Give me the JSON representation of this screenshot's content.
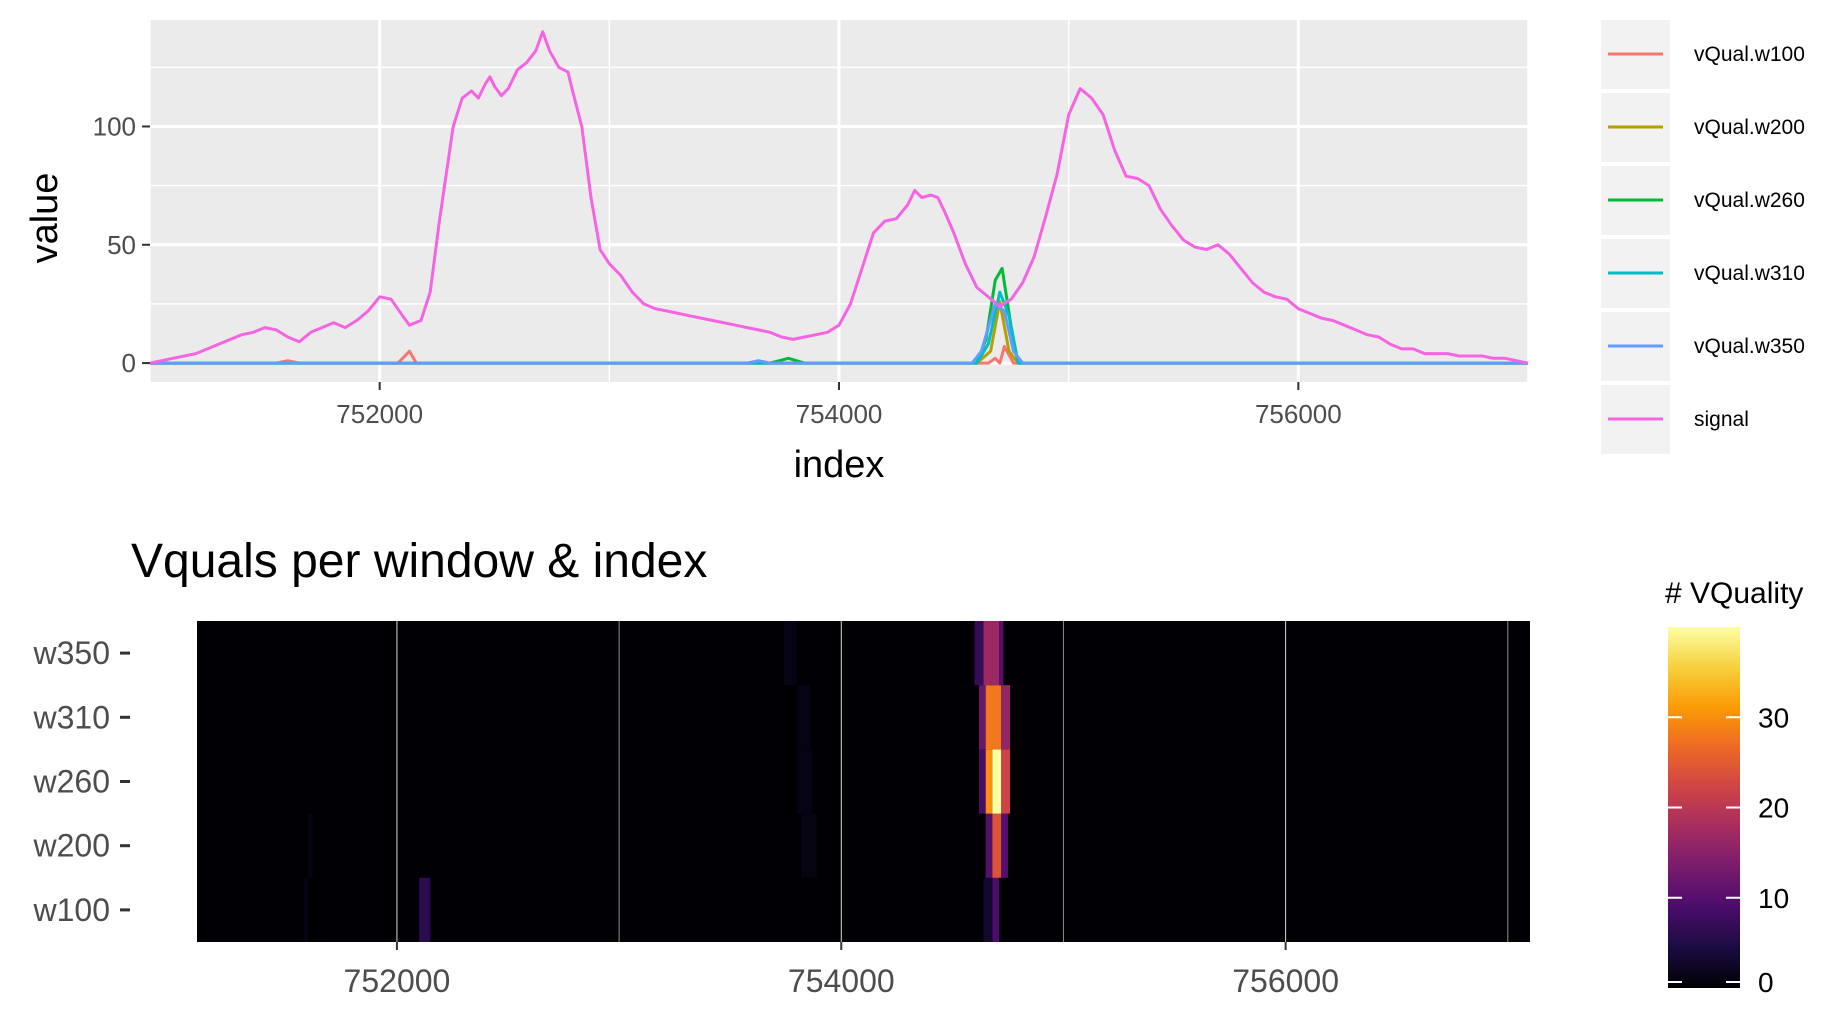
{
  "chart_data": [
    {
      "type": "line",
      "title": "",
      "xlabel": "index",
      "ylabel": "value",
      "xlim": [
        751000,
        757000
      ],
      "ylim": [
        -8,
        145
      ],
      "x_ticks": [
        752000,
        754000,
        756000
      ],
      "x_tick_labels": [
        "752000",
        "754000",
        "756000"
      ],
      "y_ticks": [
        0,
        50,
        100
      ],
      "y_tick_labels": [
        "0",
        "50",
        "100"
      ],
      "grid": true,
      "background": "#ebebeb",
      "legend_position": "right",
      "series": [
        {
          "name": "vQual.w100",
          "color": "#f8766d",
          "points": [
            [
              751000,
              0
            ],
            [
              751550,
              0
            ],
            [
              751600,
              1
            ],
            [
              751650,
              0
            ],
            [
              752080,
              0
            ],
            [
              752130,
              5
            ],
            [
              752160,
              0
            ],
            [
              754650,
              0
            ],
            [
              754680,
              2
            ],
            [
              754700,
              0
            ],
            [
              754720,
              7
            ],
            [
              754760,
              0
            ],
            [
              757000,
              0
            ]
          ]
        },
        {
          "name": "vQual.w200",
          "color": "#b79f00",
          "points": [
            [
              751000,
              0
            ],
            [
              754600,
              0
            ],
            [
              754660,
              5
            ],
            [
              754700,
              26
            ],
            [
              754740,
              5
            ],
            [
              754780,
              0
            ],
            [
              757000,
              0
            ]
          ]
        },
        {
          "name": "vQual.w260",
          "color": "#00ba38",
          "points": [
            [
              751000,
              0
            ],
            [
              753700,
              0
            ],
            [
              753780,
              2
            ],
            [
              753850,
              0
            ],
            [
              754600,
              0
            ],
            [
              754640,
              10
            ],
            [
              754680,
              35
            ],
            [
              754710,
              40
            ],
            [
              754750,
              15
            ],
            [
              754780,
              0
            ],
            [
              757000,
              0
            ]
          ]
        },
        {
          "name": "vQual.w310",
          "color": "#00bfc4",
          "points": [
            [
              751000,
              0
            ],
            [
              754600,
              0
            ],
            [
              754650,
              8
            ],
            [
              754700,
              30
            ],
            [
              754740,
              20
            ],
            [
              754780,
              0
            ],
            [
              757000,
              0
            ]
          ]
        },
        {
          "name": "vQual.w350",
          "color": "#619cff",
          "points": [
            [
              751000,
              0
            ],
            [
              753600,
              0
            ],
            [
              753650,
              1
            ],
            [
              753700,
              0
            ],
            [
              754580,
              0
            ],
            [
              754620,
              5
            ],
            [
              754680,
              25
            ],
            [
              754720,
              22
            ],
            [
              754760,
              5
            ],
            [
              754800,
              0
            ],
            [
              757000,
              0
            ]
          ]
        },
        {
          "name": "signal",
          "color": "#f564e3",
          "points": [
            [
              751000,
              0
            ],
            [
              751100,
              2
            ],
            [
              751200,
              4
            ],
            [
              751300,
              8
            ],
            [
              751400,
              12
            ],
            [
              751450,
              13
            ],
            [
              751500,
              15
            ],
            [
              751550,
              14
            ],
            [
              751600,
              11
            ],
            [
              751650,
              9
            ],
            [
              751700,
              13
            ],
            [
              751800,
              17
            ],
            [
              751850,
              15
            ],
            [
              751900,
              18
            ],
            [
              751950,
              22
            ],
            [
              752000,
              28
            ],
            [
              752050,
              27
            ],
            [
              752100,
              20
            ],
            [
              752130,
              16
            ],
            [
              752180,
              18
            ],
            [
              752220,
              30
            ],
            [
              752260,
              60
            ],
            [
              752320,
              100
            ],
            [
              752360,
              112
            ],
            [
              752400,
              115
            ],
            [
              752430,
              112
            ],
            [
              752460,
              118
            ],
            [
              752480,
              121
            ],
            [
              752500,
              117
            ],
            [
              752530,
              113
            ],
            [
              752560,
              116
            ],
            [
              752600,
              124
            ],
            [
              752640,
              127
            ],
            [
              752680,
              132
            ],
            [
              752710,
              140
            ],
            [
              752740,
              132
            ],
            [
              752780,
              125
            ],
            [
              752820,
              123
            ],
            [
              752840,
              115
            ],
            [
              752880,
              100
            ],
            [
              752920,
              70
            ],
            [
              752960,
              48
            ],
            [
              753000,
              42
            ],
            [
              753050,
              37
            ],
            [
              753100,
              30
            ],
            [
              753150,
              25
            ],
            [
              753200,
              23
            ],
            [
              753250,
              22
            ],
            [
              753300,
              21
            ],
            [
              753350,
              20
            ],
            [
              753400,
              19
            ],
            [
              753450,
              18
            ],
            [
              753500,
              17
            ],
            [
              753550,
              16
            ],
            [
              753600,
              15
            ],
            [
              753650,
              14
            ],
            [
              753700,
              13
            ],
            [
              753750,
              11
            ],
            [
              753800,
              10
            ],
            [
              753850,
              11
            ],
            [
              753900,
              12
            ],
            [
              753950,
              13
            ],
            [
              754000,
              16
            ],
            [
              754050,
              25
            ],
            [
              754100,
              40
            ],
            [
              754150,
              55
            ],
            [
              754200,
              60
            ],
            [
              754250,
              61
            ],
            [
              754300,
              67
            ],
            [
              754330,
              73
            ],
            [
              754360,
              70
            ],
            [
              754400,
              71
            ],
            [
              754430,
              70
            ],
            [
              754460,
              64
            ],
            [
              754500,
              55
            ],
            [
              754550,
              42
            ],
            [
              754600,
              32
            ],
            [
              754650,
              28
            ],
            [
              754700,
              24
            ],
            [
              754750,
              27
            ],
            [
              754800,
              34
            ],
            [
              754850,
              45
            ],
            [
              754900,
              62
            ],
            [
              754950,
              80
            ],
            [
              755000,
              105
            ],
            [
              755050,
              116
            ],
            [
              755100,
              112
            ],
            [
              755150,
              105
            ],
            [
              755200,
              90
            ],
            [
              755250,
              79
            ],
            [
              755300,
              78
            ],
            [
              755350,
              75
            ],
            [
              755400,
              65
            ],
            [
              755450,
              58
            ],
            [
              755500,
              52
            ],
            [
              755550,
              49
            ],
            [
              755600,
              48
            ],
            [
              755650,
              50
            ],
            [
              755700,
              46
            ],
            [
              755750,
              40
            ],
            [
              755800,
              34
            ],
            [
              755850,
              30
            ],
            [
              755900,
              28
            ],
            [
              755950,
              27
            ],
            [
              756000,
              23
            ],
            [
              756050,
              21
            ],
            [
              756100,
              19
            ],
            [
              756150,
              18
            ],
            [
              756200,
              16
            ],
            [
              756250,
              14
            ],
            [
              756300,
              12
            ],
            [
              756350,
              11
            ],
            [
              756400,
              8
            ],
            [
              756450,
              6
            ],
            [
              756500,
              6
            ],
            [
              756550,
              4
            ],
            [
              756600,
              4
            ],
            [
              756650,
              4
            ],
            [
              756700,
              3
            ],
            [
              756750,
              3
            ],
            [
              756800,
              3
            ],
            [
              756850,
              2
            ],
            [
              756900,
              2
            ],
            [
              756950,
              1
            ],
            [
              757000,
              0
            ]
          ]
        }
      ]
    },
    {
      "type": "heatmap",
      "title": "Vquals per window & index",
      "xlabel": "",
      "ylabel": "",
      "xlim": [
        751100,
        757100
      ],
      "x_ticks": [
        752000,
        754000,
        756000
      ],
      "x_tick_labels": [
        "752000",
        "754000",
        "756000"
      ],
      "y_categories": [
        "w100",
        "w200",
        "w260",
        "w310",
        "w350"
      ],
      "legend_title": "# VQuality",
      "colorbar_ticks": [
        0,
        10,
        20,
        30
      ],
      "colorbar_range": [
        0,
        40
      ],
      "colorscale": [
        "#000004",
        "#1b0c41",
        "#4a0c6b",
        "#781c6d",
        "#a52c60",
        "#cf4446",
        "#ed6925",
        "#fb9b06",
        "#f7d13d",
        "#fcffa4"
      ],
      "cells": [
        {
          "row": "w100",
          "x0": 752100,
          "x1": 752150,
          "value": 6
        },
        {
          "row": "w100",
          "x0": 751580,
          "x1": 751600,
          "value": 1
        },
        {
          "row": "w100",
          "x0": 754640,
          "x1": 754680,
          "value": 3
        },
        {
          "row": "w100",
          "x0": 754680,
          "x1": 754710,
          "value": 9
        },
        {
          "row": "w200",
          "x0": 751600,
          "x1": 751620,
          "value": 1
        },
        {
          "row": "w200",
          "x0": 753820,
          "x1": 753890,
          "value": 1
        },
        {
          "row": "w200",
          "x0": 754650,
          "x1": 754680,
          "value": 10
        },
        {
          "row": "w200",
          "x0": 754680,
          "x1": 754720,
          "value": 24
        },
        {
          "row": "w200",
          "x0": 754720,
          "x1": 754750,
          "value": 10
        },
        {
          "row": "w260",
          "x0": 753800,
          "x1": 753870,
          "value": 1
        },
        {
          "row": "w260",
          "x0": 754620,
          "x1": 754650,
          "value": 9
        },
        {
          "row": "w260",
          "x0": 754650,
          "x1": 754680,
          "value": 30
        },
        {
          "row": "w260",
          "x0": 754680,
          "x1": 754720,
          "value": 40
        },
        {
          "row": "w260",
          "x0": 754720,
          "x1": 754760,
          "value": 22
        },
        {
          "row": "w310",
          "x0": 753800,
          "x1": 753860,
          "value": 1
        },
        {
          "row": "w310",
          "x0": 754620,
          "x1": 754650,
          "value": 12
        },
        {
          "row": "w310",
          "x0": 754650,
          "x1": 754720,
          "value": 28
        },
        {
          "row": "w310",
          "x0": 754720,
          "x1": 754760,
          "value": 16
        },
        {
          "row": "w350",
          "x0": 753740,
          "x1": 753800,
          "value": 1
        },
        {
          "row": "w350",
          "x0": 754600,
          "x1": 754640,
          "value": 7
        },
        {
          "row": "w350",
          "x0": 754640,
          "x1": 754710,
          "value": 17
        },
        {
          "row": "w350",
          "x0": 754710,
          "x1": 754730,
          "value": 10
        }
      ]
    }
  ]
}
